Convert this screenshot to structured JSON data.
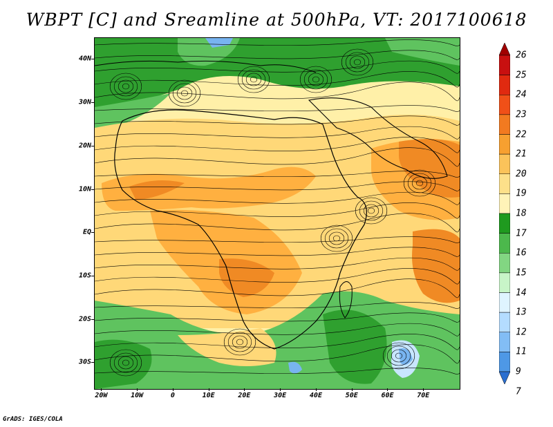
{
  "title": "WBPT [C] and Sreamline at 500hPa, VT: 2017100618",
  "credit": "GrADS: IGES/COLA",
  "map": {
    "lat_labels": [
      "40N",
      "30N",
      "20N",
      "10N",
      "EQ",
      "10S",
      "20S",
      "30S"
    ],
    "lon_labels": [
      "20W",
      "10W",
      "0",
      "10E",
      "20E",
      "30E",
      "40E",
      "50E",
      "60E",
      "70E"
    ],
    "colors": {
      "green_dark": "#2fa02f",
      "green_mid": "#5fc35f",
      "green_light": "#9fe09f",
      "yellow_pale": "#fff0a8",
      "yellow": "#ffd878",
      "orange_light": "#ffb040",
      "orange": "#f08a24",
      "orange_red": "#e85c18",
      "blue_light": "#c8e6ff",
      "blue": "#78b4f0"
    }
  },
  "colorbar": {
    "labels": [
      "26",
      "25",
      "24",
      "23",
      "22",
      "21",
      "20",
      "19",
      "18",
      "17",
      "16",
      "15",
      "14",
      "13",
      "12",
      "11",
      "9",
      "7"
    ],
    "colors": [
      "#a00000",
      "#c81010",
      "#e02a10",
      "#f05018",
      "#f27a20",
      "#f7a030",
      "#fbc35a",
      "#fde08a",
      "#fff3b8",
      "#1f9a1f",
      "#4cb84c",
      "#82d682",
      "#c8f5c8",
      "#dff4ff",
      "#b4dcff",
      "#82bdf5",
      "#4e98e6",
      "#2a6fd0"
    ]
  }
}
